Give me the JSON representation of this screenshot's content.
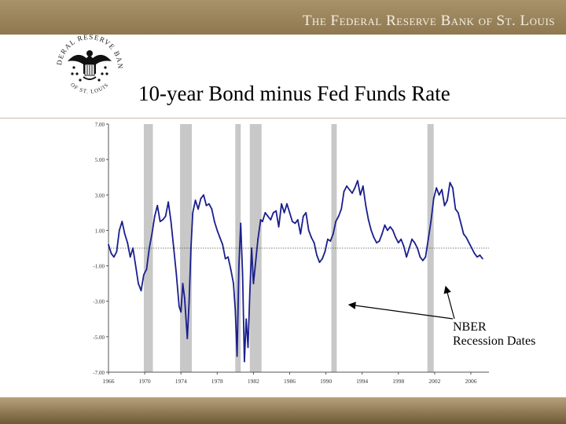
{
  "header": {
    "bank_name": "The Federal Reserve Bank of St. Louis",
    "seal_text_top": "FEDERAL RESERVE BANK",
    "seal_text_bottom": "OF ST. LOUIS"
  },
  "slide": {
    "title": "10-year Bond minus Fed Funds Rate"
  },
  "annotation": {
    "line1": "NBER",
    "line2": "Recession Dates"
  },
  "colors": {
    "series": "#1a1f8c",
    "recession": "#c8c8c8",
    "brand": "#9a845c"
  },
  "chart_data": {
    "type": "line",
    "title": "",
    "xlabel": "",
    "ylabel": "",
    "xlim": [
      1966,
      2008
    ],
    "ylim": [
      -7,
      7
    ],
    "x_ticks": [
      "1966",
      "1970",
      "1974",
      "1978",
      "1982",
      "1986",
      "1990",
      "1994",
      "1998",
      "2002",
      "2006"
    ],
    "y_ticks": [
      "7.00",
      "5.00",
      "3.00",
      "1.00",
      "-1.00",
      "-3.00",
      "-5.00",
      "-7.00"
    ],
    "reference_line": 0,
    "recessions": [
      [
        1969.9,
        1970.9
      ],
      [
        1973.9,
        1975.2
      ],
      [
        1980.0,
        1980.6
      ],
      [
        1981.6,
        1982.9
      ],
      [
        1990.6,
        1991.2
      ],
      [
        2001.2,
        2001.9
      ]
    ],
    "series": [
      {
        "values": [
          [
            1966.0,
            0.2
          ],
          [
            1966.3,
            -0.3
          ],
          [
            1966.6,
            -0.5
          ],
          [
            1966.9,
            -0.2
          ],
          [
            1967.2,
            1.0
          ],
          [
            1967.5,
            1.5
          ],
          [
            1967.8,
            0.8
          ],
          [
            1968.1,
            0.3
          ],
          [
            1968.4,
            -0.5
          ],
          [
            1968.7,
            0.0
          ],
          [
            1969.0,
            -1.0
          ],
          [
            1969.3,
            -2.0
          ],
          [
            1969.6,
            -2.4
          ],
          [
            1969.9,
            -1.5
          ],
          [
            1970.2,
            -1.2
          ],
          [
            1970.5,
            0.0
          ],
          [
            1970.8,
            0.8
          ],
          [
            1971.1,
            1.8
          ],
          [
            1971.4,
            2.4
          ],
          [
            1971.7,
            1.5
          ],
          [
            1972.0,
            1.6
          ],
          [
            1972.3,
            1.8
          ],
          [
            1972.6,
            2.6
          ],
          [
            1972.9,
            1.5
          ],
          [
            1973.2,
            0.0
          ],
          [
            1973.5,
            -1.5
          ],
          [
            1973.8,
            -3.3
          ],
          [
            1974.0,
            -3.6
          ],
          [
            1974.2,
            -2.0
          ],
          [
            1974.4,
            -2.8
          ],
          [
            1974.7,
            -5.1
          ],
          [
            1974.9,
            -3.0
          ],
          [
            1975.1,
            0.0
          ],
          [
            1975.3,
            2.0
          ],
          [
            1975.6,
            2.7
          ],
          [
            1975.9,
            2.2
          ],
          [
            1976.2,
            2.8
          ],
          [
            1976.5,
            3.0
          ],
          [
            1976.8,
            2.4
          ],
          [
            1977.1,
            2.5
          ],
          [
            1977.4,
            2.2
          ],
          [
            1977.7,
            1.5
          ],
          [
            1978.0,
            1.0
          ],
          [
            1978.3,
            0.6
          ],
          [
            1978.6,
            0.2
          ],
          [
            1978.9,
            -0.6
          ],
          [
            1979.2,
            -0.5
          ],
          [
            1979.5,
            -1.2
          ],
          [
            1979.8,
            -2.0
          ],
          [
            1980.0,
            -3.5
          ],
          [
            1980.2,
            -6.1
          ],
          [
            1980.4,
            -1.0
          ],
          [
            1980.6,
            1.4
          ],
          [
            1980.8,
            -1.5
          ],
          [
            1981.0,
            -6.4
          ],
          [
            1981.2,
            -4.0
          ],
          [
            1981.4,
            -5.6
          ],
          [
            1981.6,
            -2.5
          ],
          [
            1981.8,
            0.0
          ],
          [
            1982.0,
            -2.0
          ],
          [
            1982.2,
            -1.0
          ],
          [
            1982.5,
            0.5
          ],
          [
            1982.8,
            1.6
          ],
          [
            1983.0,
            1.5
          ],
          [
            1983.3,
            2.0
          ],
          [
            1983.6,
            1.8
          ],
          [
            1983.9,
            1.6
          ],
          [
            1984.2,
            2.0
          ],
          [
            1984.5,
            2.1
          ],
          [
            1984.8,
            1.2
          ],
          [
            1985.1,
            2.5
          ],
          [
            1985.4,
            2.0
          ],
          [
            1985.7,
            2.5
          ],
          [
            1986.0,
            2.0
          ],
          [
            1986.3,
            1.5
          ],
          [
            1986.6,
            1.4
          ],
          [
            1986.9,
            1.6
          ],
          [
            1987.2,
            0.8
          ],
          [
            1987.5,
            1.8
          ],
          [
            1987.8,
            2.0
          ],
          [
            1988.1,
            1.0
          ],
          [
            1988.4,
            0.6
          ],
          [
            1988.7,
            0.3
          ],
          [
            1989.0,
            -0.4
          ],
          [
            1989.3,
            -0.8
          ],
          [
            1989.6,
            -0.6
          ],
          [
            1989.9,
            -0.2
          ],
          [
            1990.2,
            0.5
          ],
          [
            1990.5,
            0.4
          ],
          [
            1990.8,
            0.8
          ],
          [
            1991.1,
            1.5
          ],
          [
            1991.4,
            1.8
          ],
          [
            1991.7,
            2.2
          ],
          [
            1992.0,
            3.2
          ],
          [
            1992.3,
            3.5
          ],
          [
            1992.6,
            3.3
          ],
          [
            1992.9,
            3.1
          ],
          [
            1993.2,
            3.4
          ],
          [
            1993.5,
            3.8
          ],
          [
            1993.8,
            3.0
          ],
          [
            1994.1,
            3.5
          ],
          [
            1994.4,
            2.4
          ],
          [
            1994.7,
            1.6
          ],
          [
            1995.0,
            1.0
          ],
          [
            1995.3,
            0.6
          ],
          [
            1995.6,
            0.3
          ],
          [
            1995.9,
            0.4
          ],
          [
            1996.2,
            0.8
          ],
          [
            1996.5,
            1.3
          ],
          [
            1996.8,
            1.0
          ],
          [
            1997.1,
            1.2
          ],
          [
            1997.4,
            1.0
          ],
          [
            1997.7,
            0.6
          ],
          [
            1998.0,
            0.3
          ],
          [
            1998.3,
            0.5
          ],
          [
            1998.6,
            0.1
          ],
          [
            1998.9,
            -0.5
          ],
          [
            1999.2,
            0.0
          ],
          [
            1999.5,
            0.5
          ],
          [
            1999.8,
            0.3
          ],
          [
            2000.1,
            0.0
          ],
          [
            2000.4,
            -0.5
          ],
          [
            2000.7,
            -0.7
          ],
          [
            2001.0,
            -0.5
          ],
          [
            2001.3,
            0.5
          ],
          [
            2001.6,
            1.5
          ],
          [
            2001.9,
            2.8
          ],
          [
            2002.2,
            3.4
          ],
          [
            2002.5,
            3.0
          ],
          [
            2002.8,
            3.3
          ],
          [
            2003.1,
            2.4
          ],
          [
            2003.4,
            2.7
          ],
          [
            2003.7,
            3.7
          ],
          [
            2004.0,
            3.4
          ],
          [
            2004.3,
            2.2
          ],
          [
            2004.6,
            2.0
          ],
          [
            2004.9,
            1.4
          ],
          [
            2005.2,
            0.8
          ],
          [
            2005.5,
            0.6
          ],
          [
            2005.8,
            0.3
          ],
          [
            2006.1,
            0.0
          ],
          [
            2006.4,
            -0.3
          ],
          [
            2006.7,
            -0.5
          ],
          [
            2007.0,
            -0.4
          ],
          [
            2007.3,
            -0.6
          ]
        ]
      }
    ]
  }
}
